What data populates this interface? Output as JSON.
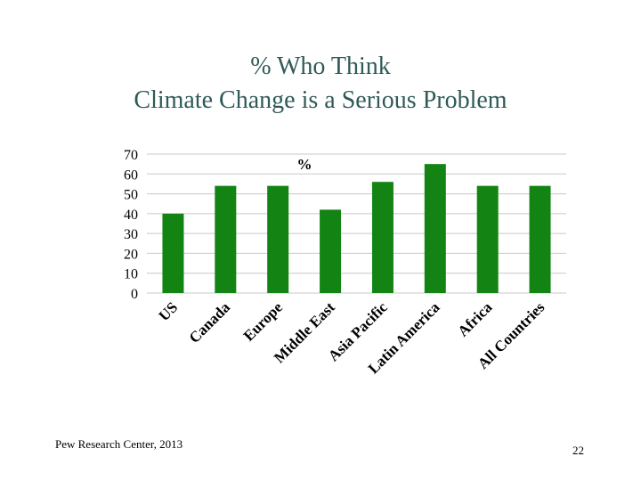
{
  "slide": {
    "title_line1": "% Who Think",
    "title_line2": "Climate Change is a Serious Problem",
    "source": "Pew Research Center, 2013",
    "page_number": "22"
  },
  "chart_data": {
    "type": "bar",
    "title": "",
    "unit_label": "%",
    "categories": [
      "US",
      "Canada",
      "Europe",
      "Middle East",
      "Asia Pacific",
      "Latin America",
      "Africa",
      "All Countries"
    ],
    "values": [
      40,
      54,
      54,
      42,
      56,
      65,
      54,
      54
    ],
    "ylim": [
      0,
      70
    ],
    "yticks": [
      0,
      10,
      20,
      30,
      40,
      50,
      60,
      70
    ],
    "grid": true,
    "bar_color": "#138413",
    "grid_color": "#c8c8c8"
  }
}
